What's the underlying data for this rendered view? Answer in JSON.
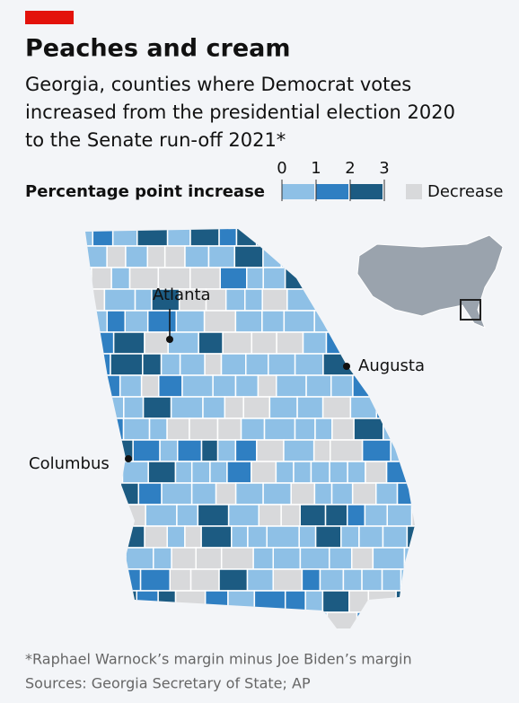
{
  "header": {
    "title": "Peaches and cream",
    "subtitle_lines": [
      "Georgia, counties where Democrat votes",
      "increased from the presidential election 2020",
      "to the Senate run-off 2021*"
    ]
  },
  "legend": {
    "title": "Percentage point increase",
    "ticks": [
      0,
      1,
      2,
      3
    ],
    "colors": [
      "#8ec0e6",
      "#2f7fc2",
      "#1c5b82"
    ],
    "decrease_label": "Decrease",
    "decrease_color": "#d8d9db"
  },
  "map": {
    "cities": [
      {
        "name": "Atlanta"
      },
      {
        "name": "Augusta"
      },
      {
        "name": "Columbus"
      }
    ]
  },
  "footer": {
    "note": "*Raphael Warnock’s margin minus Joe Biden’s margin",
    "source": "Sources: Georgia Secretary of State; AP"
  }
}
